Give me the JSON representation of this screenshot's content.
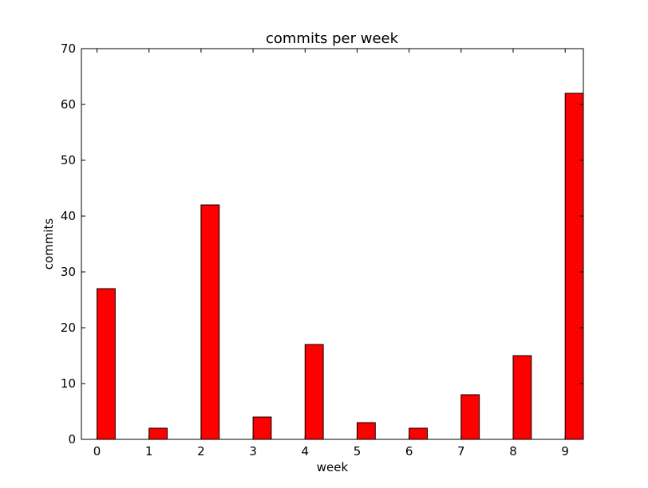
{
  "chart_data": {
    "type": "bar",
    "title": "commits per week",
    "xlabel": "week",
    "ylabel": "commits",
    "categories": [
      "0",
      "1",
      "2",
      "3",
      "4",
      "5",
      "6",
      "7",
      "8",
      "9"
    ],
    "x": [
      0,
      1,
      2,
      3,
      4,
      5,
      6,
      7,
      8,
      9
    ],
    "values": [
      27,
      2,
      42,
      4,
      17,
      3,
      2,
      8,
      15,
      62
    ],
    "xlim": [
      -0.3,
      9.35
    ],
    "ylim": [
      0,
      70
    ],
    "yticks": [
      0,
      10,
      20,
      30,
      40,
      50,
      60,
      70
    ],
    "ytick_labels": [
      "0",
      "10",
      "20",
      "30",
      "40",
      "50",
      "60",
      "70"
    ],
    "bar_width": 0.35,
    "grid": false,
    "legend": "none",
    "colors": {
      "bar_fill": "#ff0000",
      "bar_edge": "#000000",
      "axes": "#000000",
      "background": "#ffffff"
    }
  }
}
